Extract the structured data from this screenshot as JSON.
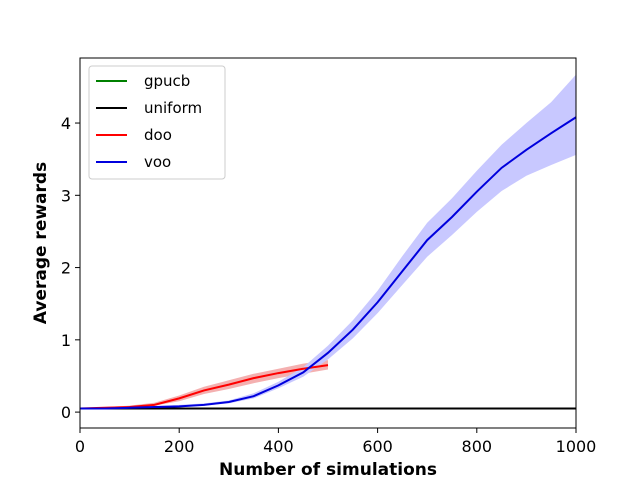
{
  "chart_data": {
    "type": "line",
    "xlabel": "Number of simulations",
    "ylabel": "Average rewards",
    "xlim": [
      0,
      1000
    ],
    "ylim": [
      -0.22,
      4.9
    ],
    "xticks": [
      0,
      200,
      400,
      600,
      800,
      1000
    ],
    "yticks": [
      0,
      1,
      2,
      3,
      4
    ],
    "grid": false,
    "legend_position": "top-left",
    "series": [
      {
        "name": "gpucb",
        "color": "#008000",
        "x": [
          0,
          1000
        ],
        "y": [
          0.05,
          0.05
        ],
        "band": null
      },
      {
        "name": "uniform",
        "color": "#000000",
        "x": [
          0,
          100,
          200,
          300,
          400,
          500,
          600,
          700,
          800,
          900,
          1000
        ],
        "y": [
          0.05,
          0.05,
          0.05,
          0.05,
          0.05,
          0.05,
          0.05,
          0.05,
          0.05,
          0.05,
          0.05
        ],
        "band": null
      },
      {
        "name": "doo",
        "color": "#ff0000",
        "band_color": "#f4b0b0",
        "x": [
          0,
          50,
          100,
          150,
          200,
          250,
          300,
          350,
          400,
          450,
          500
        ],
        "y": [
          0.05,
          0.06,
          0.07,
          0.1,
          0.19,
          0.3,
          0.38,
          0.47,
          0.54,
          0.6,
          0.65
        ],
        "lower": [
          0.04,
          0.05,
          0.06,
          0.09,
          0.15,
          0.25,
          0.32,
          0.4,
          0.47,
          0.53,
          0.59
        ],
        "upper": [
          0.06,
          0.07,
          0.09,
          0.13,
          0.23,
          0.35,
          0.44,
          0.53,
          0.6,
          0.67,
          0.72
        ]
      },
      {
        "name": "voo",
        "color": "#0000dd",
        "band_color": "#c8c8ff",
        "x": [
          0,
          50,
          100,
          150,
          200,
          250,
          300,
          350,
          400,
          450,
          500,
          550,
          600,
          650,
          700,
          750,
          800,
          850,
          900,
          950,
          1000
        ],
        "y": [
          0.05,
          0.05,
          0.06,
          0.07,
          0.08,
          0.1,
          0.14,
          0.22,
          0.37,
          0.55,
          0.82,
          1.14,
          1.52,
          1.95,
          2.38,
          2.7,
          3.05,
          3.38,
          3.63,
          3.86,
          4.08
        ],
        "lower": [
          0.04,
          0.04,
          0.05,
          0.06,
          0.07,
          0.09,
          0.12,
          0.19,
          0.33,
          0.49,
          0.73,
          1.02,
          1.37,
          1.76,
          2.15,
          2.45,
          2.77,
          3.06,
          3.27,
          3.42,
          3.56
        ],
        "upper": [
          0.06,
          0.06,
          0.07,
          0.08,
          0.1,
          0.12,
          0.16,
          0.26,
          0.42,
          0.62,
          0.92,
          1.27,
          1.68,
          2.16,
          2.62,
          2.96,
          3.34,
          3.7,
          4.0,
          4.29,
          4.67
        ]
      }
    ]
  }
}
